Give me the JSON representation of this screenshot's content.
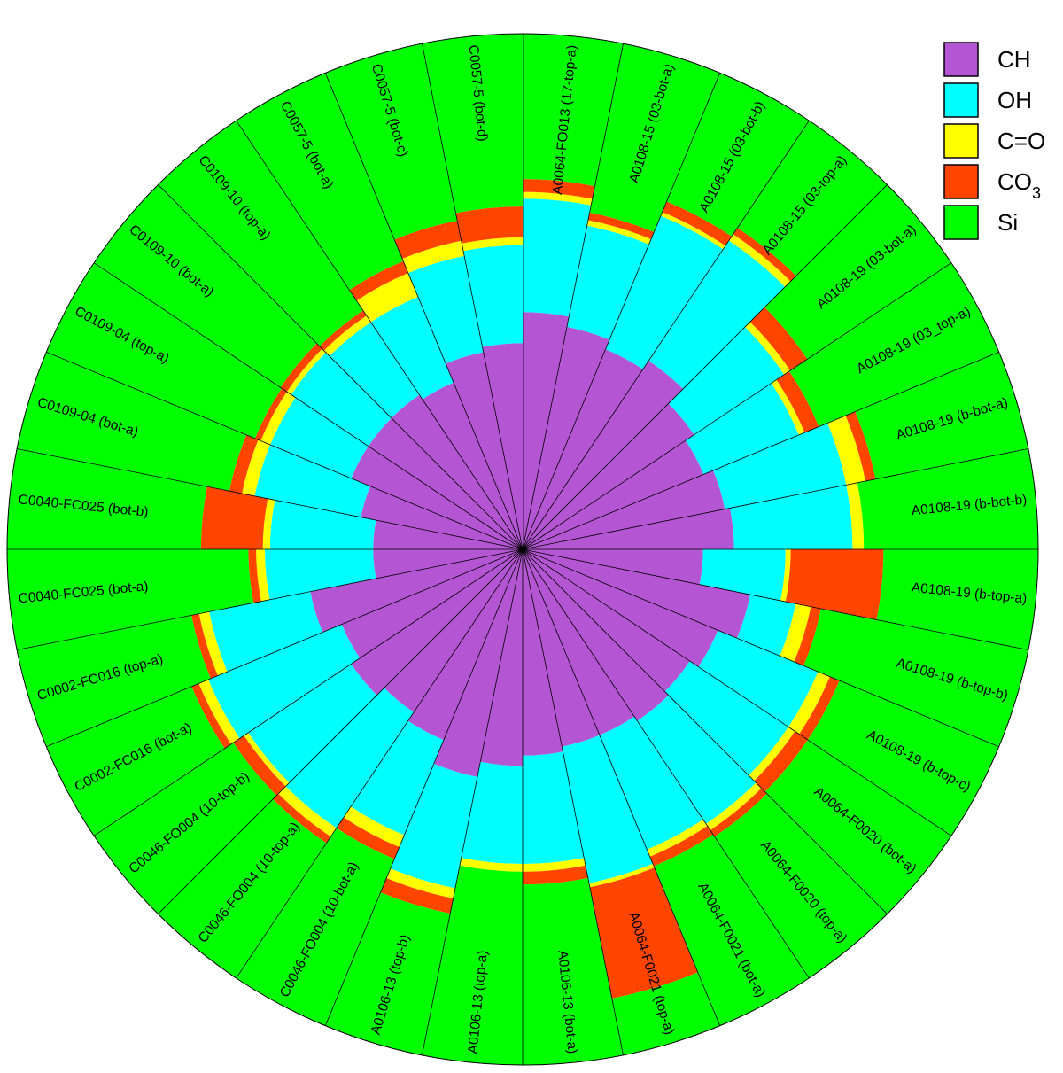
{
  "chart_data": {
    "type": "polar-stacked-bar",
    "legend": {
      "position": "top-right",
      "entries": [
        {
          "key": "CH",
          "label": "CH",
          "sub": ""
        },
        {
          "key": "OH",
          "label": "OH",
          "sub": ""
        },
        {
          "key": "CO",
          "label": "C=O",
          "sub": ""
        },
        {
          "key": "CO3",
          "label": "CO",
          "sub": "3"
        },
        {
          "key": "Si",
          "label": "Si",
          "sub": ""
        }
      ]
    },
    "colors": {
      "CH": "#b455d3",
      "OH": "#00ffff",
      "CO": "#ffff00",
      "CO3": "#ff4500",
      "Si": "#00ff00"
    },
    "series_order": [
      "CH",
      "OH",
      "CO",
      "CO3",
      "Si"
    ],
    "categories": [
      "A0064-FO013 (17-top-a)",
      "A0108-15 (03-bot-a)",
      "A0108-15 (03-bot-b)",
      "A0108-15 (03-top-a)",
      "A0108-19 (03-bot-a)",
      "A0108-19 (03_top-a)",
      "A0108-19 (b-bot-a)",
      "A0108-19 (b-bot-b)",
      "A0108-19 (b-top-a)",
      "A0108-19 (b-top-b)",
      "A0108-19 (b-top-c)",
      "A0064-F0020 (bot-a)",
      "A0064-F0020 (top-a)",
      "A0064-F0021 (bot-a)",
      "A0064-F0021 (top-a)",
      "A0106-13 (bot-a)",
      "A0106-13 (top-a)",
      "A0106-13 (top-b)",
      "C0046-FO004 (10-bot-a)",
      "C0046-FO004 (10-top-a)",
      "C0046-FO004 (10-top-b)",
      "C0002-FC016 (bot-a)",
      "C0002-FC016 (top-a)",
      "C0040-FC025 (bot-a)",
      "C0040-FC025 (bot-b)",
      "C0109-04 (bot-a)",
      "C0109-04 (top-a)",
      "C0109-10 (bot-a)",
      "C0109-10 (top-a)",
      "C0057-5 (bot-a)",
      "C0057-5 (bot-c)",
      "C0057-5 (bot-d)"
    ],
    "series": [
      {
        "name": "CH",
        "values": [
          0.46,
          0.44,
          0.42,
          0.44,
          0.4,
          0.38,
          0.4,
          0.41,
          0.35,
          0.45,
          0.41,
          0.39,
          0.4,
          0.39,
          0.39,
          0.4,
          0.42,
          0.45,
          0.4,
          0.38,
          0.4,
          0.38,
          0.42,
          0.29,
          0.29,
          0.32,
          0.36,
          0.36,
          0.36,
          0.35,
          0.39,
          0.4
        ]
      },
      {
        "name": "OH",
        "values": [
          0.22,
          0.2,
          0.28,
          0.28,
          0.21,
          0.2,
          0.24,
          0.23,
          0.16,
          0.09,
          0.21,
          0.23,
          0.24,
          0.24,
          0.27,
          0.21,
          0.19,
          0.22,
          0.2,
          0.27,
          0.24,
          0.28,
          0.2,
          0.21,
          0.2,
          0.21,
          0.17,
          0.18,
          0.17,
          0.18,
          0.19,
          0.19
        ]
      },
      {
        "name": "C=O",
        "values": [
          0.013,
          0.011,
          0.008,
          0.015,
          0.014,
          0.012,
          0.038,
          0.022,
          0.01,
          0.03,
          0.025,
          0.015,
          0.015,
          0.015,
          0.008,
          0.015,
          0.015,
          0.02,
          0.025,
          0.02,
          0.01,
          0.02,
          0.02,
          0.017,
          0.014,
          0.025,
          0.02,
          0.01,
          0.015,
          0.05,
          0.03,
          0.015
        ]
      },
      {
        "name": "CO3",
        "values": [
          0.025,
          0.015,
          0.022,
          0.015,
          0.04,
          0.03,
          0.02,
          0.0,
          0.18,
          0.02,
          0.02,
          0.03,
          0.015,
          0.02,
          0.22,
          0.025,
          0.0,
          0.03,
          0.025,
          0.015,
          0.025,
          0.015,
          0.015,
          0.015,
          0.12,
          0.025,
          0.012,
          0.015,
          0.012,
          0.025,
          0.04,
          0.06
        ]
      },
      {
        "name": "Si",
        "values": [
          0.282,
          0.334,
          0.27,
          0.25,
          0.336,
          0.388,
          0.302,
          0.338,
          0.3,
          0.41,
          0.335,
          0.335,
          0.33,
          0.335,
          0.112,
          0.35,
          0.375,
          0.28,
          0.35,
          0.315,
          0.325,
          0.305,
          0.345,
          0.468,
          0.376,
          0.42,
          0.438,
          0.435,
          0.443,
          0.395,
          0.35,
          0.335
        ]
      }
    ]
  }
}
